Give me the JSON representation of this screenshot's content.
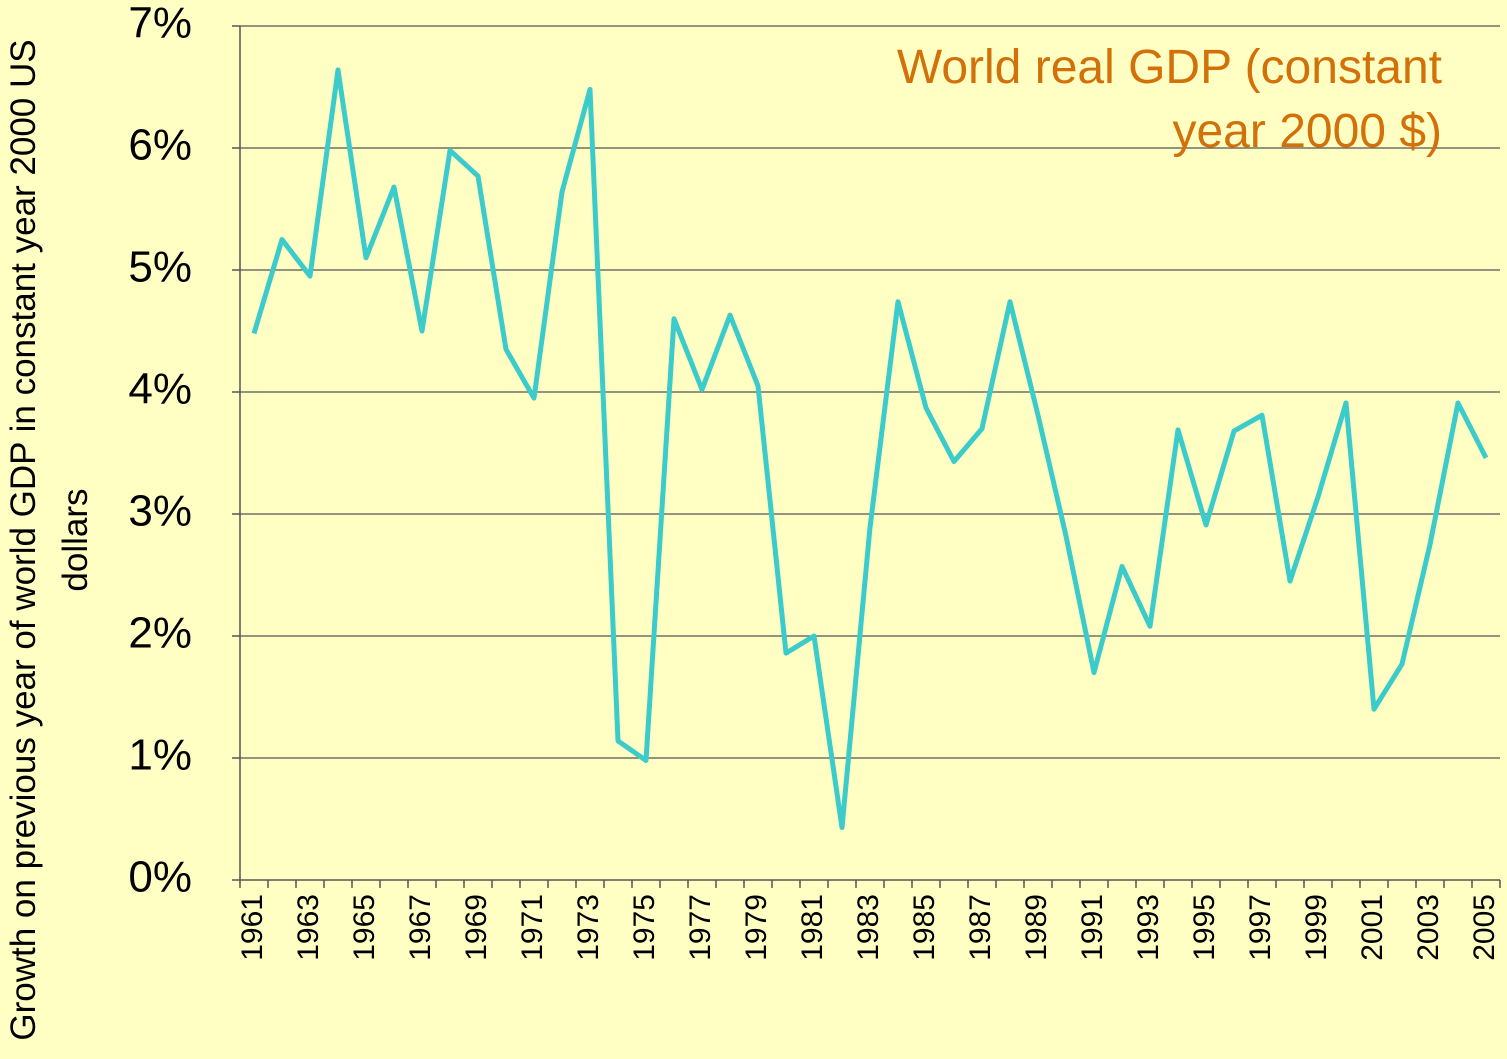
{
  "chart_data": {
    "type": "line",
    "title": "World real GDP (constant year 2000 $)",
    "y_label": "Growth on previous year of world GDP in constant year 2000 US dollars",
    "categories": [
      "1961",
      null,
      "1963",
      null,
      "1965",
      null,
      "1967",
      null,
      "1969",
      null,
      "1971",
      null,
      "1973",
      null,
      "1975",
      null,
      "1977",
      null,
      "1979",
      null,
      "1981",
      null,
      "1983",
      null,
      "1985",
      null,
      "1987",
      null,
      "1989",
      null,
      "1991",
      null,
      "1993",
      null,
      "1995",
      null,
      "1997",
      null,
      "1999",
      null,
      "2001",
      null,
      "2003",
      null,
      "2005"
    ],
    "values": [
      4.48,
      5.25,
      4.95,
      6.64,
      5.1,
      5.68,
      4.5,
      5.98,
      5.77,
      4.35,
      3.95,
      5.64,
      6.48,
      1.14,
      0.98,
      4.6,
      4.02,
      4.63,
      4.05,
      1.86,
      2.0,
      0.43,
      2.89,
      4.74,
      3.87,
      3.43,
      3.7,
      4.74,
      3.81,
      2.82,
      1.7,
      2.57,
      2.08,
      3.69,
      2.91,
      3.68,
      3.81,
      2.45,
      3.14,
      3.91,
      1.4,
      1.77,
      2.75,
      3.91,
      3.46
    ],
    "color": "#3ccbcb",
    "ylim": [
      0,
      7
    ],
    "yticks": [
      {
        "value": 0,
        "label": "0%"
      },
      {
        "value": 1,
        "label": "1%"
      },
      {
        "value": 2,
        "label": "2%"
      },
      {
        "value": 3,
        "label": "3%"
      },
      {
        "value": 4,
        "label": "4%"
      },
      {
        "value": 5,
        "label": "5%"
      },
      {
        "value": 6,
        "label": "6%"
      },
      {
        "value": 7,
        "label": "7%"
      }
    ],
    "grid": true
  }
}
